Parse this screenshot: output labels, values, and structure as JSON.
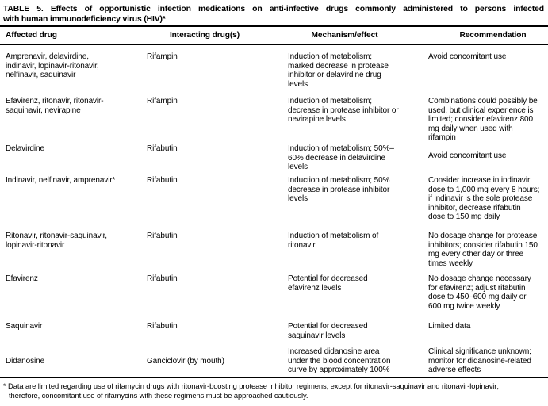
{
  "title": {
    "line1": "TABLE 5. Effects of opportunistic infection medications on anti-infective drugs commonly administered to persons infected",
    "line2": "with human immunodeficiency virus (HIV)*"
  },
  "header": {
    "columns": [
      "Affected drug",
      "Interacting drug(s)",
      "Mechanism/effect",
      "Recommendation"
    ]
  },
  "rows": [
    {
      "affected": "Amprenavir, delavirdine,\nindinavir, lopinavir-ritonavir,\nnelfinavir, saquinavir",
      "interacting": "Rifampin",
      "mechanism": "Induction of metabolism;\nmarked decrease in protease\ninhibitor or delavirdine drug\nlevels",
      "recommendation": "Avoid concomitant use"
    },
    {
      "affected": "Efavirenz, ritonavir, ritonavir-\nsaquinavir, nevirapine",
      "interacting": "Rifampin",
      "mechanism": "Induction of metabolism;\ndecrease in protease inhibitor or\nnevirapine levels",
      "recommendation": "Combinations could possibly be\nused, but clinical experience is\nlimited; consider efavirenz 800\nmg daily when used with\nrifampin"
    },
    {
      "affected": "Delavirdine",
      "interacting": "Rifabutin",
      "mechanism": "Induction of metabolism; 50%–\n60% decrease in delavirdine\nlevels",
      "recommendation": "Avoid concomitant use"
    },
    {
      "affected": "Indinavir, nelfinavir, amprenavir*",
      "interacting": "Rifabutin",
      "mechanism": "Induction of metabolism; 50%\ndecrease in protease inhibitor\nlevels",
      "recommendation": "Consider increase in indinavir\ndose to 1,000 mg every 8 hours;\nif indinavir is the sole protease\ninhibitor, decrease rifabutin\ndose to 150 mg daily"
    },
    {
      "affected": "Ritonavir, ritonavir-saquinavir,\nlopinavir-ritonavir",
      "interacting": "Rifabutin",
      "mechanism": "Induction of metabolism of\nritonavir",
      "recommendation": "No dosage change for protease\ninhibitors; consider rifabutin 150\nmg every other day or three\ntimes weekly"
    },
    {
      "affected": "Efavirenz",
      "interacting": "Rifabutin",
      "mechanism": "Potential for decreased\nefavirenz levels",
      "recommendation": "No dosage change necessary\nfor efavirenz; adjust rifabutin\ndose to 450–600 mg daily or\n600 mg twice weekly"
    },
    {
      "affected": "Saquinavir",
      "interacting": "Rifabutin",
      "mechanism": "Potential for decreased\nsaquinavir levels",
      "recommendation": "Limited data"
    },
    {
      "affected": "Didanosine",
      "interacting": "Ganciclovir (by mouth)",
      "mechanism": "Increased didanosine area\nunder the blood concentration\ncurve by approximately 100%",
      "recommendation": "Clinical significance unknown;\nmonitor for didanosine-related\nadverse effects"
    }
  ],
  "footnote": {
    "text": "* Data are limited regarding use of rifamycin drugs with ritonavir-boosting protease inhibitor regimens, except for ritonavir-saquinavir and ritonavir-lopinavir;\ntherefore, concomitant use of rifamycins with these regimens must be approached cautiously."
  },
  "colors": {
    "text": "#000000",
    "background": "#ffffff",
    "rule": "#000000"
  }
}
